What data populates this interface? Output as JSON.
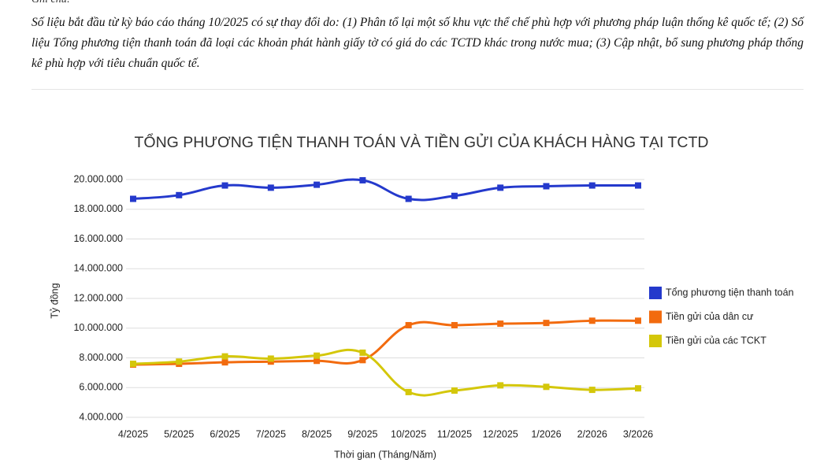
{
  "note": {
    "heading": "Ghi chú:",
    "text": "Số liệu bắt đầu từ kỳ báo cáo tháng 10/2025 có sự thay đổi do: (1) Phân tổ lại một số khu vực thể chế phù hợp với phương pháp luận thống kê quốc tế; (2) Số liệu Tổng phương tiện thanh toán đã loại các khoản phát hành giấy tờ có giá do các TCTD khác trong nước mua; (3) Cập nhật, bổ sung phương pháp thống kê phù hợp với tiêu chuẩn quốc tế."
  },
  "chart_data": {
    "type": "line",
    "title": "TỔNG PHƯƠNG TIỆN THANH TOÁN VÀ TIỀN GỬI CỦA KHÁCH HÀNG TẠI TCTD",
    "y_label": "Tỷ đồng",
    "x_label": "Thời gian (Tháng/Năm)",
    "categories": [
      "4/2025",
      "5/2025",
      "6/2025",
      "7/2025",
      "8/2025",
      "9/2025",
      "10/2025",
      "11/2025",
      "12/2025",
      "1/2026",
      "2/2026",
      "3/2026"
    ],
    "series": [
      {
        "name": "Tổng phương tiện thanh toán",
        "color": "#2439cc",
        "values": [
          18700000,
          18950000,
          19600000,
          19450000,
          19650000,
          19950000,
          18700000,
          18900000,
          19450000,
          19550000,
          19600000,
          19600000
        ]
      },
      {
        "name": "Tiền gửi của dân cư",
        "color": "#f26b0f",
        "values": [
          7550000,
          7600000,
          7700000,
          7750000,
          7800000,
          7850000,
          10200000,
          10200000,
          10300000,
          10350000,
          10500000,
          10500000
        ]
      },
      {
        "name": "Tiền gửi của các TCKT",
        "color": "#d4c70a",
        "values": [
          7600000,
          7750000,
          8100000,
          7950000,
          8150000,
          8350000,
          5700000,
          5800000,
          6150000,
          6050000,
          5850000,
          5950000
        ]
      }
    ],
    "ylim": [
      4000000,
      20000000
    ],
    "yticks": [
      {
        "value": 4000000,
        "label": "4.000.000"
      },
      {
        "value": 6000000,
        "label": "6.000.000"
      },
      {
        "value": 8000000,
        "label": "8.000.000"
      },
      {
        "value": 10000000,
        "label": "10.000.000"
      },
      {
        "value": 12000000,
        "label": "12.000.000"
      },
      {
        "value": 14000000,
        "label": "14.000.000"
      },
      {
        "value": 16000000,
        "label": "16.000.000"
      },
      {
        "value": 18000000,
        "label": "18.000.000"
      },
      {
        "value": 20000000,
        "label": "20.000.000"
      }
    ],
    "grid": true,
    "legend": "right"
  }
}
